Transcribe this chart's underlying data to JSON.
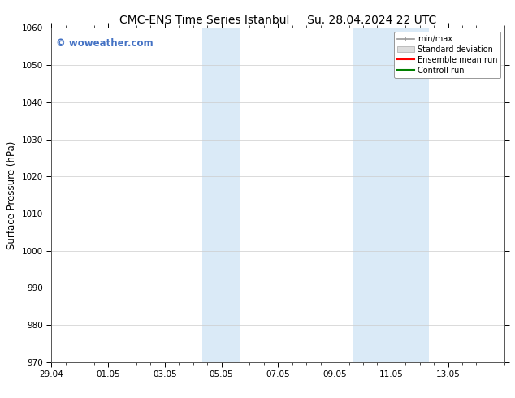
{
  "title_left": "CMC-ENS Time Series Istanbul",
  "title_right": "Su. 28.04.2024 22 UTC",
  "ylabel": "Surface Pressure (hPa)",
  "ylim": [
    970,
    1060
  ],
  "yticks": [
    970,
    980,
    990,
    1000,
    1010,
    1020,
    1030,
    1040,
    1050,
    1060
  ],
  "xlim_start": 0,
  "xlim_end": 16,
  "xtick_labels": [
    "29.04",
    "01.05",
    "03.05",
    "05.05",
    "07.05",
    "09.05",
    "11.05",
    "13.05"
  ],
  "xtick_positions": [
    0,
    2,
    4,
    6,
    8,
    10,
    12,
    14
  ],
  "shaded_regions": [
    {
      "x_start": 5.33,
      "x_end": 6.67,
      "color": "#daeaf7"
    },
    {
      "x_start": 10.67,
      "x_end": 12.0,
      "color": "#daeaf7"
    },
    {
      "x_start": 12.0,
      "x_end": 13.33,
      "color": "#daeaf7"
    }
  ],
  "watermark_text": "© woweather.com",
  "watermark_color": "#4472c4",
  "legend_labels": [
    "min/max",
    "Standard deviation",
    "Ensemble mean run",
    "Controll run"
  ],
  "legend_colors": [
    "#aaaaaa",
    "#cccccc",
    "#ff0000",
    "#008000"
  ],
  "background_color": "#ffffff",
  "title_fontsize": 10,
  "tick_fontsize": 7.5,
  "ylabel_fontsize": 8.5
}
